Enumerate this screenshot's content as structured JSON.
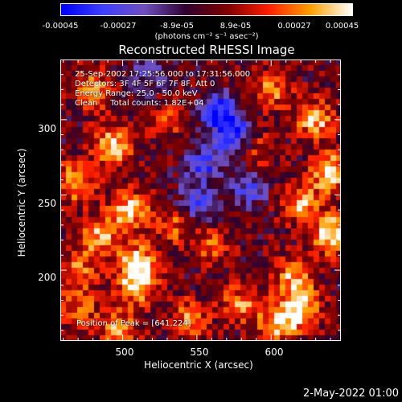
{
  "colorbar": {
    "ticks": [
      "-0.00045",
      "-0.00027",
      "-8.9e-05",
      "8.9e-05",
      "0.00027",
      "0.00045"
    ],
    "units": "(photons cm⁻² s⁻¹ asec⁻²)",
    "min": -0.00045,
    "max": 0.00045,
    "colormap": [
      "#0000ff",
      "#4040ff",
      "#7050c0",
      "#300030",
      "#800000",
      "#ff2000",
      "#ffa000",
      "#ffffff"
    ]
  },
  "chart_data": {
    "type": "heatmap",
    "title": "Reconstructed RHESSI Image",
    "xlabel": "Heliocentric X (arcsec)",
    "ylabel": "Heliocentric Y (arcsec)",
    "xlim": [
      458,
      647
    ],
    "ylim": [
      153,
      340
    ],
    "xticks": [
      "500",
      "550",
      "600"
    ],
    "yticks": [
      "300",
      "250",
      "200"
    ],
    "annotations": {
      "line1": "25-Sep-2002 17:25:56.000 to 17:31:56.000",
      "line2": "Detectors: 3F 4F 5F 6F 7F 8F, Att 0",
      "line3": "Energy Range: 25.0 - 50.0 keV",
      "line4": "Clean     Total counts: 1.82E+04",
      "peak": "Position of Peak = [641,224]"
    },
    "peak_position": [
      641,
      224
    ],
    "hotspots": [
      {
        "x": 493,
        "y": 282,
        "value": 0.0004
      },
      {
        "x": 468,
        "y": 258,
        "value": 0.00036
      },
      {
        "x": 505,
        "y": 240,
        "value": 0.00038
      },
      {
        "x": 485,
        "y": 222,
        "value": 0.00034
      },
      {
        "x": 510,
        "y": 205,
        "value": 0.0004
      },
      {
        "x": 510,
        "y": 190,
        "value": 0.00036
      },
      {
        "x": 497,
        "y": 162,
        "value": 0.0003
      },
      {
        "x": 470,
        "y": 200,
        "value": 0.00026
      },
      {
        "x": 560,
        "y": 215,
        "value": 0.00022
      },
      {
        "x": 580,
        "y": 178,
        "value": 0.00028
      },
      {
        "x": 605,
        "y": 165,
        "value": 0.00036
      },
      {
        "x": 615,
        "y": 195,
        "value": 0.00032
      },
      {
        "x": 630,
        "y": 300,
        "value": 0.00036
      },
      {
        "x": 640,
        "y": 265,
        "value": 0.00042
      },
      {
        "x": 641,
        "y": 224,
        "value": 0.00045
      },
      {
        "x": 620,
        "y": 245,
        "value": 0.00034
      },
      {
        "x": 600,
        "y": 320,
        "value": 0.00028
      },
      {
        "x": 480,
        "y": 320,
        "value": 0.0003
      },
      {
        "x": 535,
        "y": 230,
        "value": 0.00024
      },
      {
        "x": 545,
        "y": 168,
        "value": 0.00026
      },
      {
        "x": 590,
        "y": 280,
        "value": 0.0002
      },
      {
        "x": 530,
        "y": 300,
        "value": 0.00018
      },
      {
        "x": 470,
        "y": 175,
        "value": 0.00024
      },
      {
        "x": 620,
        "y": 175,
        "value": 0.0004
      }
    ],
    "coldspots": [
      {
        "x": 565,
        "y": 305,
        "value": -0.0004
      },
      {
        "x": 575,
        "y": 290,
        "value": -0.00036
      },
      {
        "x": 555,
        "y": 270,
        "value": -0.0003
      },
      {
        "x": 550,
        "y": 245,
        "value": -0.00028
      },
      {
        "x": 585,
        "y": 255,
        "value": -0.00026
      },
      {
        "x": 520,
        "y": 330,
        "value": -0.0002
      }
    ]
  },
  "datestamp": "2-May-2022 01:00"
}
